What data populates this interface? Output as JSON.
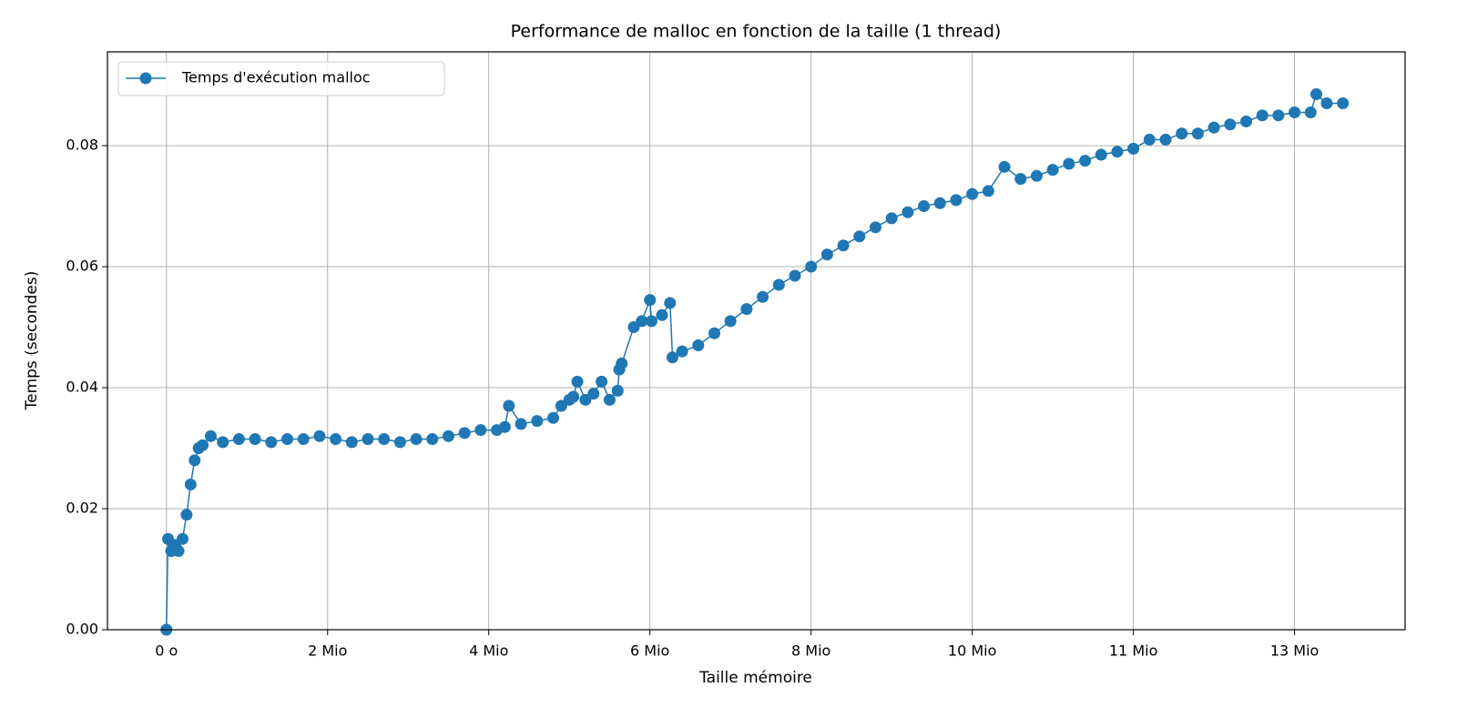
{
  "chart_data": {
    "type": "line",
    "title": "Performance de malloc en fonction de la taille (1 thread)",
    "x_label": "Taille mémoire",
    "y_label": "Temps (secondes)",
    "x": [
      0,
      20000,
      60000,
      100000,
      150000,
      200000,
      250000,
      300000,
      350000,
      400000,
      450000,
      550000,
      700000,
      900000,
      1100000,
      1300000,
      1500000,
      1700000,
      1900000,
      2100000,
      2300000,
      2500000,
      2700000,
      2900000,
      3100000,
      3300000,
      3500000,
      3700000,
      3900000,
      4100000,
      4200000,
      4250000,
      4400000,
      4600000,
      4800000,
      4900000,
      5000000,
      5050000,
      5100000,
      5200000,
      5300000,
      5400000,
      5500000,
      5600000,
      5620000,
      5650000,
      5800000,
      5900000,
      6000000,
      6020000,
      6150000,
      6250000,
      6280000,
      6400000,
      6600000,
      6800000,
      7000000,
      7200000,
      7400000,
      7600000,
      7800000,
      8000000,
      8200000,
      8400000,
      8600000,
      8800000,
      9000000,
      9200000,
      9400000,
      9600000,
      9800000,
      10000000,
      10200000,
      10400000,
      10600000,
      10800000,
      11000000,
      11200000,
      11400000,
      11600000,
      11800000,
      12000000,
      12200000,
      12400000,
      12600000,
      12800000,
      13000000,
      13200000,
      13400000,
      13600000,
      13800000,
      14000000,
      14200000,
      14270000,
      14400000,
      14600000
    ],
    "series": [
      {
        "name": "Temps d'exécution malloc",
        "color": "#1f77b4",
        "values": [
          0,
          0.015,
          0.013,
          0.014,
          0.013,
          0.015,
          0.019,
          0.024,
          0.028,
          0.03,
          0.0305,
          0.032,
          0.031,
          0.0315,
          0.0315,
          0.031,
          0.0315,
          0.0315,
          0.032,
          0.0315,
          0.031,
          0.0315,
          0.0315,
          0.031,
          0.0315,
          0.0315,
          0.032,
          0.0325,
          0.033,
          0.033,
          0.0335,
          0.037,
          0.034,
          0.0345,
          0.035,
          0.037,
          0.038,
          0.0385,
          0.041,
          0.038,
          0.039,
          0.041,
          0.038,
          0.0395,
          0.043,
          0.044,
          0.05,
          0.051,
          0.0545,
          0.051,
          0.052,
          0.054,
          0.045,
          0.046,
          0.047,
          0.049,
          0.051,
          0.053,
          0.055,
          0.057,
          0.0585,
          0.06,
          0.062,
          0.0635,
          0.065,
          0.0665,
          0.068,
          0.069,
          0.07,
          0.0705,
          0.071,
          0.072,
          0.0725,
          0.0765,
          0.0745,
          0.075,
          0.076,
          0.077,
          0.0775,
          0.0785,
          0.079,
          0.0795,
          0.081,
          0.081,
          0.082,
          0.082,
          0.083,
          0.0835,
          0.084,
          0.085,
          0.085,
          0.0855,
          0.0855,
          0.0885,
          0.087,
          0.087
        ]
      }
    ],
    "xlim": [
      -732000,
      15372000
    ],
    "ylim": [
      0,
      0.0955
    ],
    "xticks": [
      {
        "value": 0,
        "label": "0 o"
      },
      {
        "value": 2000000,
        "label": "2 Mio"
      },
      {
        "value": 4000000,
        "label": "4 Mio"
      },
      {
        "value": 6000000,
        "label": "6 Mio"
      },
      {
        "value": 8000000,
        "label": "8 Mio"
      },
      {
        "value": 10000000,
        "label": "10 Mio"
      },
      {
        "value": 12000000,
        "label": "11 Mio"
      },
      {
        "value": 14000000,
        "label": "13 Mio"
      }
    ],
    "yticks": [
      {
        "value": 0,
        "label": "0.00"
      },
      0.02,
      0.04,
      0.06,
      0.08
    ],
    "grid": true,
    "legend": "upper-left"
  }
}
